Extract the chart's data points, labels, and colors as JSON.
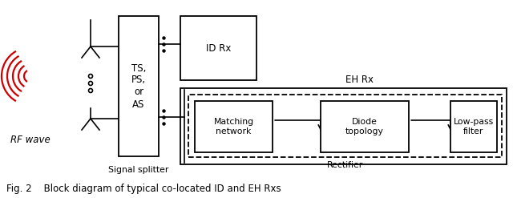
{
  "fig_width": 6.4,
  "fig_height": 2.47,
  "dpi": 100,
  "background_color": "#ffffff",
  "caption": "Fig. 2    Block diagram of typical co-located ID and EH Rxs",
  "rf_wave_label": "RF wave",
  "signal_splitter_label": "Signal splitter",
  "ts_ps_as_label": "TS,\nPS,\nor\nAS",
  "id_rx_label": "ID Rx",
  "eh_rx_label": "EH Rx",
  "matching_network_label": "Matching\nnetwork",
  "diode_topology_label": "Diode\ntopology",
  "low_pass_filter_label": "Low-pass\nfilter",
  "rectifier_label": "Rectifier",
  "rf_arc_radii": [
    8,
    15,
    22,
    29,
    36
  ],
  "rf_arc_color": "#cc0000",
  "rf_arc_lw": 1.6
}
